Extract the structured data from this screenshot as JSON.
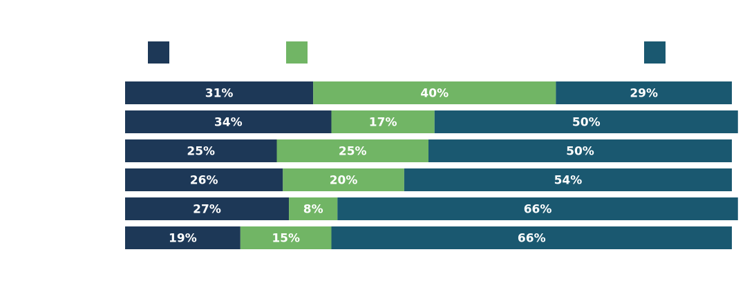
{
  "chart_data": {
    "type": "stacked-bar-horizontal",
    "categories": [
      null,
      null,
      null,
      null,
      null,
      null
    ],
    "xlim": [
      0,
      100
    ],
    "series": [
      {
        "color": "#1d3857",
        "values": [
          31,
          34,
          25,
          26,
          27,
          19
        ],
        "value_labels": [
          "31%",
          "34%",
          "25%",
          "26%",
          "27%",
          "19%"
        ]
      },
      {
        "color": "#71b565",
        "values": [
          40,
          17,
          25,
          20,
          8,
          15
        ],
        "value_labels": [
          "40%",
          "17%",
          "25%",
          "20%",
          "8%",
          "15%"
        ]
      },
      {
        "color": "#1a5870",
        "values": [
          29,
          50,
          50,
          54,
          66,
          66
        ],
        "value_labels": [
          "29%",
          "50%",
          "50%",
          "54%",
          "66%",
          "66%"
        ]
      }
    ]
  }
}
